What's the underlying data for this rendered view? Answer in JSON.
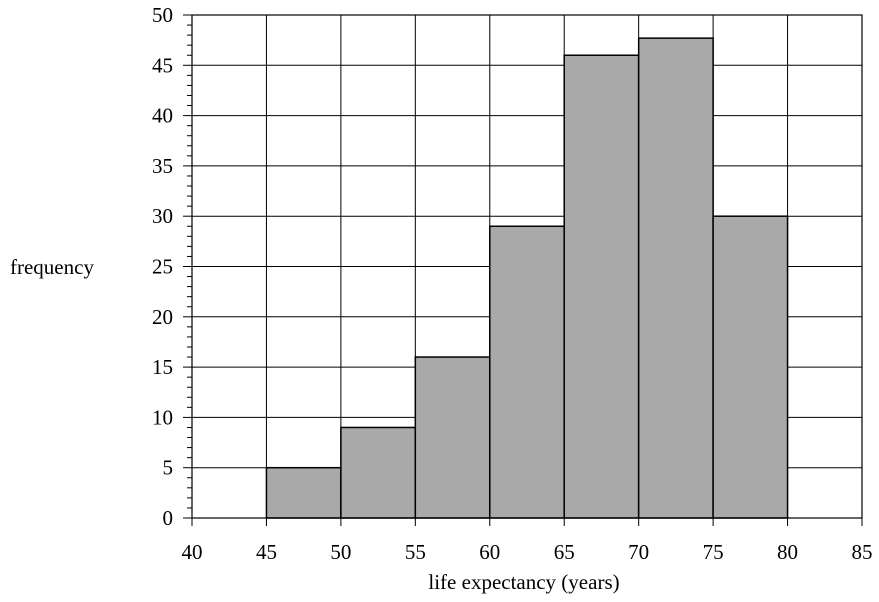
{
  "chart_data": {
    "type": "bar",
    "subtype": "histogram",
    "bins": [
      {
        "start": 45,
        "end": 50,
        "value": 5
      },
      {
        "start": 50,
        "end": 55,
        "value": 9
      },
      {
        "start": 55,
        "end": 60,
        "value": 16
      },
      {
        "start": 60,
        "end": 65,
        "value": 29
      },
      {
        "start": 65,
        "end": 70,
        "value": 46
      },
      {
        "start": 70,
        "end": 75,
        "value": 47.7
      },
      {
        "start": 75,
        "end": 80,
        "value": 30
      }
    ],
    "xlabel": "life expectancy (years)",
    "ylabel": "frequency",
    "xlim": [
      40,
      85
    ],
    "ylim": [
      0,
      50
    ],
    "xticks": [
      40,
      45,
      50,
      55,
      60,
      65,
      70,
      75,
      80,
      85
    ],
    "yticks": [
      0,
      5,
      10,
      15,
      20,
      25,
      30,
      35,
      40,
      45,
      50
    ],
    "y_minor_tick_step": 1,
    "grid": true,
    "colors": {
      "bar_fill": "#a9a9a9",
      "bar_edge": "#000000",
      "grid": "#000000"
    }
  }
}
